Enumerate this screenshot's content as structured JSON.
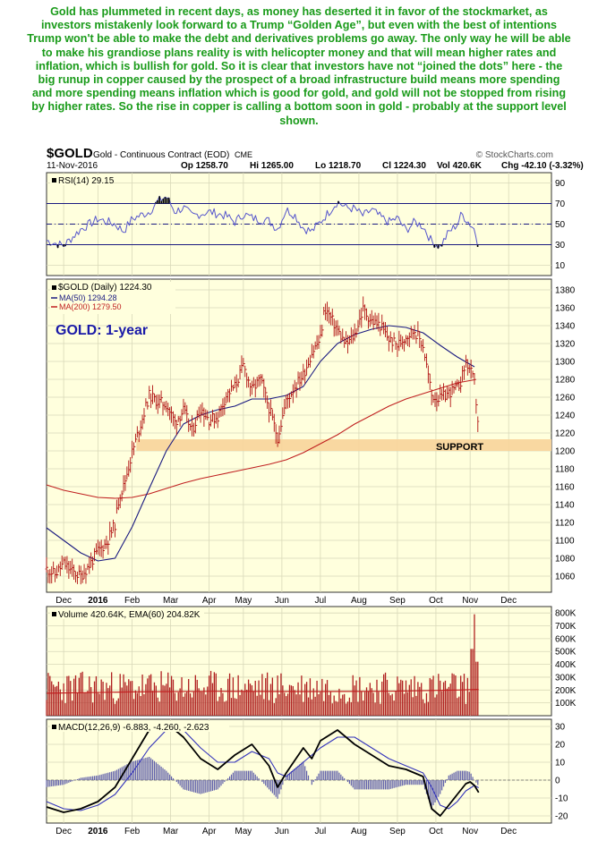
{
  "commentary": "Gold has plummeted in recent days, as money has deserted it in favor of the stockmarket, as investors mistakenly look forward to a Trump “Golden Age”, but even with the best of intentions Trump won't be able to make the debt and derivatives problems go away. The only way he will be able to make his grandiose plans reality is with helicopter money and that will mean higher rates and inflation, which is bullish for gold. So it is clear that investors have not “joined the dots” here - the big runup in copper caused by the prospect of a broad infrastructure build means more spending and more spending means inflation which is good for gold, and gold will not be stopped from rising by higher rates. So the rise in copper is calling a bottom soon in gold - probably at the support level shown.",
  "header": {
    "symbol": "$GOLD",
    "description": "Gold - Continuous Contract (EOD)",
    "exchange": "CME",
    "watermark": "© StockCharts.com",
    "date": "11-Nov-2016",
    "op": "Op 1258.70",
    "hi": "Hi 1265.00",
    "lo": "Lo 1218.70",
    "cl": "Cl 1224.30",
    "vol": "Vol 420.6K",
    "chg": "Chg -42.10 (-3.32%)"
  },
  "colors": {
    "background": "#ffffdd",
    "grid": "#d8d8b8",
    "price_bar": "#b01010",
    "ma50": "#1a1a80",
    "ma200": "#c02020",
    "support_band": "#f8d49a",
    "rsi_line": "#5555cc",
    "rsi_ref": "#1a1a80",
    "volume_bar": "#b02020",
    "macd_line": "#000000",
    "signal_line": "#3333bb",
    "histogram": "#6060aa",
    "commentary": "#1a9b1a",
    "title_label": "#1a1aa8"
  },
  "chart_data": [
    {
      "type": "line",
      "panel": "rsi",
      "legend": "RSI(14) 29.15",
      "yticks": [
        90,
        70,
        50,
        30,
        10
      ],
      "ylim": [
        0,
        100
      ],
      "reference_levels": [
        70,
        50,
        30
      ],
      "points": [
        [
          0,
          34
        ],
        [
          2,
          29
        ],
        [
          4,
          45
        ],
        [
          6,
          55
        ],
        [
          8,
          50
        ],
        [
          9,
          43
        ],
        [
          10,
          55
        ],
        [
          12,
          62
        ],
        [
          13,
          72
        ],
        [
          14,
          77
        ],
        [
          15,
          62
        ],
        [
          16,
          66
        ],
        [
          17,
          58
        ],
        [
          19,
          62
        ],
        [
          21,
          58
        ],
        [
          22,
          52
        ],
        [
          23,
          60
        ],
        [
          24,
          56
        ],
        [
          26,
          53
        ],
        [
          27,
          45
        ],
        [
          28,
          64
        ],
        [
          29,
          59
        ],
        [
          30,
          46
        ],
        [
          31,
          43
        ],
        [
          32,
          52
        ],
        [
          33,
          62
        ],
        [
          34,
          72
        ],
        [
          35,
          66
        ],
        [
          36,
          65
        ],
        [
          37,
          58
        ],
        [
          38,
          64
        ],
        [
          39,
          57
        ],
        [
          40,
          52
        ],
        [
          41,
          56
        ],
        [
          42,
          44
        ],
        [
          43,
          52
        ],
        [
          44,
          48
        ],
        [
          45,
          33
        ],
        [
          46,
          28
        ],
        [
          47,
          42
        ],
        [
          48,
          50
        ],
        [
          48.5,
          60
        ],
        [
          49,
          55
        ],
        [
          50,
          45
        ],
        [
          50.5,
          28
        ]
      ]
    },
    {
      "type": "line",
      "panel": "price",
      "title": "GOLD: 1-year",
      "legend": [
        "$GOLD (Daily) 1224.30",
        "MA(50) 1294.28",
        "MA(200) 1279.50"
      ],
      "ylabel": "",
      "yticks": [
        1380,
        1360,
        1340,
        1320,
        1300,
        1280,
        1260,
        1240,
        1220,
        1200,
        1180,
        1160,
        1140,
        1120,
        1100,
        1080,
        1060
      ],
      "ylim": [
        1042,
        1392
      ],
      "xticks": [
        {
          "label": "Dec",
          "w": 2
        },
        {
          "label": "2016",
          "w": 6
        },
        {
          "label": "Feb",
          "w": 10
        },
        {
          "label": "Mar",
          "w": 14.5
        },
        {
          "label": "Apr",
          "w": 19
        },
        {
          "label": "May",
          "w": 23
        },
        {
          "label": "Jun",
          "w": 27.5
        },
        {
          "label": "Jul",
          "w": 32
        },
        {
          "label": "Aug",
          "w": 36.5
        },
        {
          "label": "Sep",
          "w": 41
        },
        {
          "label": "Oct",
          "w": 45.5
        },
        {
          "label": "Nov",
          "w": 49.5
        },
        {
          "label": "Dec",
          "w": 54
        }
      ],
      "xlim": [
        0,
        59
      ],
      "support": {
        "label": "SUPPORT",
        "low": 1200,
        "high": 1213,
        "from_w": 10.5
      },
      "series": [
        {
          "name": "$GOLD (Daily)",
          "points": [
            [
              0,
              1068
            ],
            [
              1,
              1062
            ],
            [
              2,
              1074
            ],
            [
              3,
              1065
            ],
            [
              4,
              1060
            ],
            [
              5,
              1072
            ],
            [
              6,
              1088
            ],
            [
              7,
              1097
            ],
            [
              8,
              1118
            ],
            [
              8.5,
              1150
            ],
            [
              9,
              1160
            ],
            [
              10,
              1198
            ],
            [
              11,
              1230
            ],
            [
              12,
              1262
            ],
            [
              13,
              1255
            ],
            [
              14,
              1252
            ],
            [
              15,
              1232
            ],
            [
              16,
              1245
            ],
            [
              17,
              1222
            ],
            [
              18,
              1248
            ],
            [
              19,
              1235
            ],
            [
              20,
              1238
            ],
            [
              21,
              1262
            ],
            [
              22,
              1272
            ],
            [
              23,
              1295
            ],
            [
              24,
              1268
            ],
            [
              25,
              1280
            ],
            [
              26,
              1248
            ],
            [
              27,
              1215
            ],
            [
              28,
              1255
            ],
            [
              29,
              1272
            ],
            [
              30,
              1285
            ],
            [
              31,
              1310
            ],
            [
              32,
              1325
            ],
            [
              32.5,
              1360
            ],
            [
              33,
              1352
            ],
            [
              34,
              1335
            ],
            [
              35,
              1318
            ],
            [
              36,
              1330
            ],
            [
              37,
              1358
            ],
            [
              38,
              1345
            ],
            [
              39,
              1340
            ],
            [
              40,
              1325
            ],
            [
              41,
              1318
            ],
            [
              42,
              1328
            ],
            [
              43,
              1335
            ],
            [
              44,
              1318
            ],
            [
              45,
              1262
            ],
            [
              46,
              1258
            ],
            [
              47,
              1265
            ],
            [
              48,
              1270
            ],
            [
              48.5,
              1280
            ],
            [
              49,
              1300
            ],
            [
              49.5,
              1290
            ],
            [
              50,
              1275
            ],
            [
              50.5,
              1224
            ]
          ]
        },
        {
          "name": "MA(50)",
          "points": [
            [
              0,
              1114
            ],
            [
              2,
              1100
            ],
            [
              4,
              1086
            ],
            [
              6,
              1077
            ],
            [
              8,
              1080
            ],
            [
              10,
              1115
            ],
            [
              12,
              1158
            ],
            [
              14,
              1200
            ],
            [
              16,
              1230
            ],
            [
              18,
              1240
            ],
            [
              20,
              1246
            ],
            [
              22,
              1250
            ],
            [
              24,
              1258
            ],
            [
              26,
              1258
            ],
            [
              28,
              1262
            ],
            [
              30,
              1272
            ],
            [
              32,
              1300
            ],
            [
              34,
              1320
            ],
            [
              36,
              1330
            ],
            [
              38,
              1336
            ],
            [
              40,
              1340
            ],
            [
              42,
              1338
            ],
            [
              44,
              1332
            ],
            [
              46,
              1318
            ],
            [
              48,
              1305
            ],
            [
              50,
              1294
            ]
          ]
        },
        {
          "name": "MA(200)",
          "points": [
            [
              0,
              1162
            ],
            [
              2,
              1156
            ],
            [
              4,
              1152
            ],
            [
              6,
              1148
            ],
            [
              8,
              1147
            ],
            [
              10,
              1148
            ],
            [
              12,
              1152
            ],
            [
              14,
              1158
            ],
            [
              16,
              1164
            ],
            [
              18,
              1169
            ],
            [
              20,
              1173
            ],
            [
              22,
              1177
            ],
            [
              24,
              1181
            ],
            [
              26,
              1185
            ],
            [
              28,
              1190
            ],
            [
              30,
              1198
            ],
            [
              32,
              1208
            ],
            [
              34,
              1218
            ],
            [
              36,
              1230
            ],
            [
              38,
              1240
            ],
            [
              40,
              1250
            ],
            [
              42,
              1258
            ],
            [
              44,
              1264
            ],
            [
              46,
              1270
            ],
            [
              48,
              1276
            ],
            [
              50,
              1279.5
            ]
          ]
        }
      ]
    },
    {
      "type": "bar",
      "panel": "volume",
      "legend": "Volume 420.64K, EMA(60) 204.82K",
      "yticks": [
        "800K",
        "700K",
        "600K",
        "500K",
        "400K",
        "300K",
        "200K",
        "100K"
      ],
      "ylim": [
        0,
        850000
      ],
      "ema_points": [
        [
          0,
          175000
        ],
        [
          10,
          185000
        ],
        [
          20,
          190000
        ],
        [
          30,
          188000
        ],
        [
          40,
          190000
        ],
        [
          48,
          200000
        ],
        [
          50.5,
          204820
        ]
      ],
      "last": {
        "w": 50.5,
        "value": 420640
      },
      "peak": {
        "w": 50,
        "value": 790000
      }
    },
    {
      "type": "line",
      "panel": "macd",
      "legend": "MACD(12,26,9) -6.883, -4.260, -2.623",
      "yticks": [
        30,
        20,
        10,
        0,
        -10,
        -20
      ],
      "ylim": [
        -24,
        34
      ],
      "series": [
        {
          "name": "MACD",
          "points": [
            [
              0,
              -15
            ],
            [
              2,
              -18
            ],
            [
              4,
              -16
            ],
            [
              6,
              -12
            ],
            [
              8,
              -4
            ],
            [
              10,
              12
            ],
            [
              12,
              28
            ],
            [
              14,
              32
            ],
            [
              16,
              24
            ],
            [
              18,
              12
            ],
            [
              20,
              6
            ],
            [
              22,
              14
            ],
            [
              24,
              20
            ],
            [
              26,
              8
            ],
            [
              27,
              -4
            ],
            [
              28,
              4
            ],
            [
              30,
              18
            ],
            [
              31,
              12
            ],
            [
              32,
              22
            ],
            [
              34,
              28
            ],
            [
              36,
              20
            ],
            [
              38,
              14
            ],
            [
              40,
              8
            ],
            [
              42,
              6
            ],
            [
              44,
              2
            ],
            [
              45,
              -16
            ],
            [
              46,
              -20
            ],
            [
              47,
              -14
            ],
            [
              48,
              -8
            ],
            [
              49,
              -2
            ],
            [
              49.5,
              -1
            ],
            [
              50,
              -3
            ],
            [
              50.5,
              -6.883
            ]
          ]
        },
        {
          "name": "Signal",
          "points": [
            [
              0,
              -12
            ],
            [
              2,
              -16
            ],
            [
              4,
              -17
            ],
            [
              6,
              -14
            ],
            [
              8,
              -8
            ],
            [
              10,
              4
            ],
            [
              12,
              18
            ],
            [
              14,
              28
            ],
            [
              16,
              28
            ],
            [
              18,
              18
            ],
            [
              20,
              10
            ],
            [
              22,
              10
            ],
            [
              24,
              16
            ],
            [
              26,
              12
            ],
            [
              27,
              4
            ],
            [
              28,
              2
            ],
            [
              30,
              10
            ],
            [
              32,
              18
            ],
            [
              34,
              24
            ],
            [
              36,
              24
            ],
            [
              38,
              18
            ],
            [
              40,
              12
            ],
            [
              42,
              8
            ],
            [
              44,
              4
            ],
            [
              45,
              -4
            ],
            [
              46,
              -14
            ],
            [
              47,
              -16
            ],
            [
              48,
              -12
            ],
            [
              49,
              -6
            ],
            [
              50,
              -3
            ],
            [
              50.5,
              -4.26
            ]
          ]
        }
      ]
    }
  ]
}
